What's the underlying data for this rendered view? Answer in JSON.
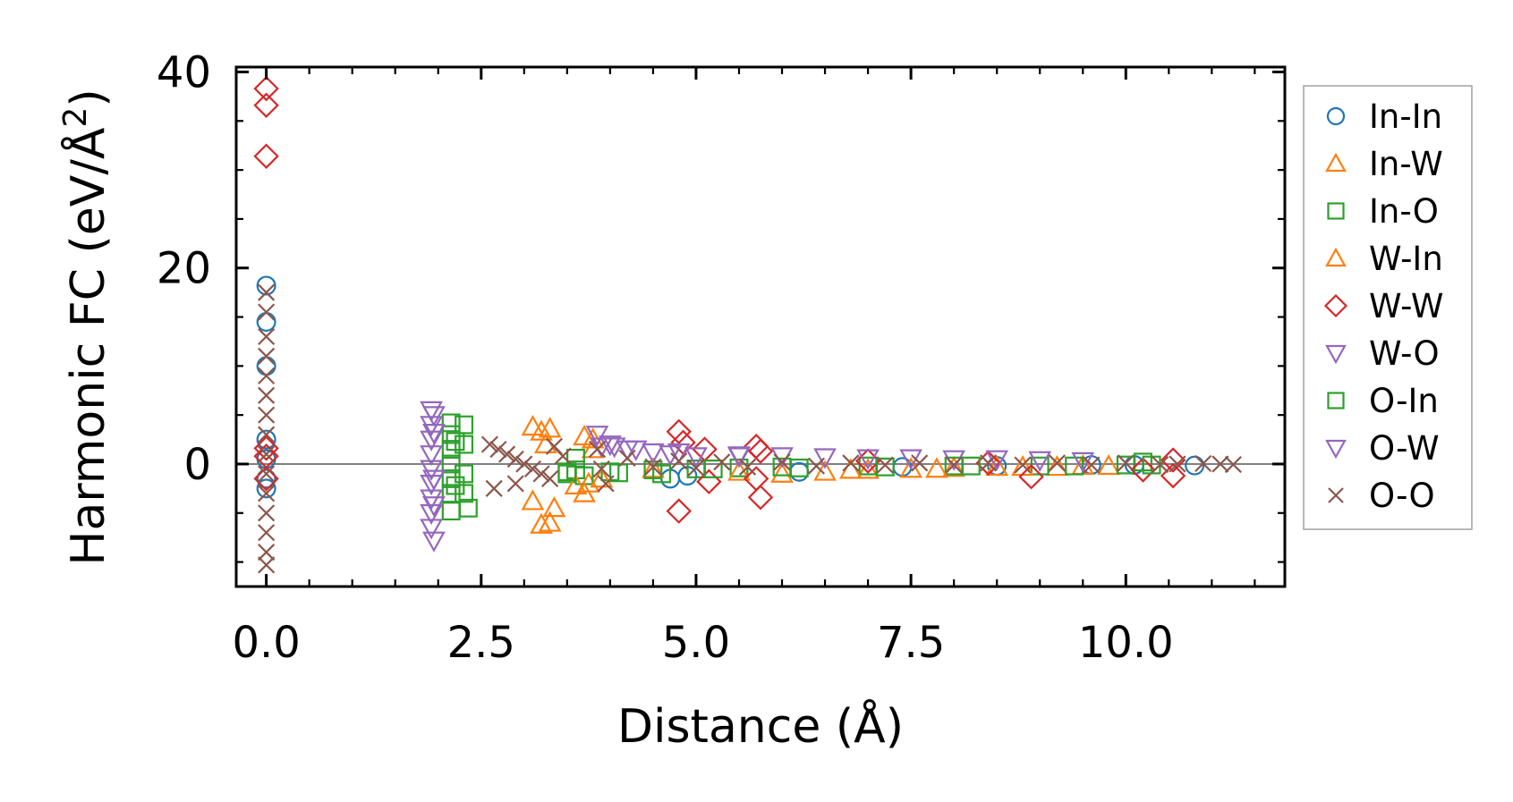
{
  "chart_data": {
    "type": "scatter",
    "xlabel": "Distance (Å)",
    "ylabel_main": "Harmonic FC (eV/Å",
    "ylabel_sup": "2",
    "ylabel_close": ")",
    "xlim": [
      -0.35,
      11.85
    ],
    "ylim": [
      -12.5,
      40.5
    ],
    "x_ticks": [
      0.0,
      2.5,
      5.0,
      7.5,
      10.0
    ],
    "x_tick_labels": [
      "0.0",
      "2.5",
      "5.0",
      "7.5",
      "10.0"
    ],
    "y_ticks": [
      0,
      20,
      40
    ],
    "y_tick_labels": [
      "0",
      "20",
      "40"
    ],
    "zero_line": true,
    "legend_position": "right-outside",
    "series": [
      {
        "name": "In-In",
        "marker": "circle",
        "color": "#1f77b4",
        "points": [
          [
            0,
            18.2
          ],
          [
            0,
            14.5
          ],
          [
            0,
            10.0
          ],
          [
            0,
            2.5
          ],
          [
            0,
            0.5
          ],
          [
            0,
            -1.5
          ],
          [
            0,
            -2.5
          ],
          [
            4.7,
            -1.5
          ],
          [
            4.9,
            -1.2
          ],
          [
            6.2,
            -0.8
          ],
          [
            7.4,
            -0.3
          ],
          [
            8.5,
            -0.2
          ],
          [
            9.6,
            -0.1
          ],
          [
            10.1,
            -0.1
          ],
          [
            10.8,
            -0.15
          ]
        ]
      },
      {
        "name": "In-W",
        "marker": "triangle-up",
        "color": "#ff7f0e",
        "points": [
          [
            3.1,
            3.8
          ],
          [
            3.2,
            3.3
          ],
          [
            3.3,
            3.6
          ],
          [
            3.25,
            2.0
          ],
          [
            3.1,
            -3.8
          ],
          [
            3.2,
            -6.2
          ],
          [
            3.3,
            -6.0
          ],
          [
            3.35,
            -4.5
          ],
          [
            3.7,
            2.8
          ],
          [
            3.75,
            -2.0
          ],
          [
            3.8,
            1.5
          ],
          [
            4.5,
            -0.5
          ],
          [
            6.0,
            -1.0
          ],
          [
            6.5,
            -0.8
          ],
          [
            7.0,
            -0.6
          ],
          [
            7.5,
            -0.5
          ],
          [
            8.0,
            -0.4
          ],
          [
            8.5,
            -0.3
          ],
          [
            9.2,
            -0.3
          ],
          [
            9.8,
            -0.2
          ]
        ]
      },
      {
        "name": "In-O",
        "marker": "square",
        "color": "#2ca02c",
        "points": [
          [
            2.15,
            4.2
          ],
          [
            2.15,
            3.0
          ],
          [
            2.15,
            1.5
          ],
          [
            2.15,
            0.0
          ],
          [
            2.15,
            -1.5
          ],
          [
            2.15,
            -3.0
          ],
          [
            2.15,
            -4.8
          ],
          [
            2.2,
            -2.2
          ],
          [
            2.2,
            2.3
          ],
          [
            3.5,
            -1.0
          ],
          [
            3.6,
            -0.6
          ],
          [
            3.7,
            -1.2
          ],
          [
            4.0,
            -0.8
          ],
          [
            4.5,
            -0.6
          ],
          [
            5.0,
            -0.5
          ],
          [
            5.5,
            -0.4
          ],
          [
            6.0,
            -0.3
          ],
          [
            7.0,
            -0.2
          ],
          [
            8.0,
            -0.2
          ],
          [
            9.0,
            -0.2
          ],
          [
            10.0,
            -0.1
          ],
          [
            10.2,
            0.2
          ]
        ]
      },
      {
        "name": "W-In",
        "marker": "triangle-up",
        "color": "#ff7f0e",
        "points": [
          [
            3.6,
            -2.2
          ],
          [
            3.7,
            -3.0
          ],
          [
            3.8,
            2.5
          ],
          [
            3.9,
            -1.5
          ],
          [
            5.5,
            -0.8
          ],
          [
            6.8,
            -0.6
          ],
          [
            7.8,
            -0.5
          ],
          [
            8.8,
            -0.3
          ],
          [
            9.5,
            -0.2
          ]
        ]
      },
      {
        "name": "W-W",
        "marker": "diamond",
        "color": "#d62728",
        "points": [
          [
            0,
            38.3
          ],
          [
            0,
            36.6
          ],
          [
            0,
            31.4
          ],
          [
            0,
            1.6
          ],
          [
            0,
            0.8
          ],
          [
            0,
            -1.5
          ],
          [
            4.8,
            3.3
          ],
          [
            4.85,
            2.2
          ],
          [
            4.8,
            -4.8
          ],
          [
            5.1,
            1.5
          ],
          [
            5.15,
            -1.8
          ],
          [
            5.7,
            1.8
          ],
          [
            5.75,
            1.3
          ],
          [
            5.7,
            -1.5
          ],
          [
            5.75,
            -3.4
          ],
          [
            7.0,
            0.3
          ],
          [
            8.4,
            0.1
          ],
          [
            8.9,
            -1.3
          ],
          [
            10.2,
            -0.6
          ],
          [
            10.55,
            0.4
          ],
          [
            10.55,
            -1.2
          ]
        ]
      },
      {
        "name": "W-O",
        "marker": "triangle-down",
        "color": "#9467bd",
        "points": [
          [
            1.92,
            5.5
          ],
          [
            1.92,
            4.0
          ],
          [
            1.92,
            2.5
          ],
          [
            1.92,
            1.0
          ],
          [
            1.92,
            -0.5
          ],
          [
            1.92,
            -2.0
          ],
          [
            1.92,
            -3.5
          ],
          [
            1.92,
            -5.0
          ],
          [
            1.92,
            -6.5
          ],
          [
            1.95,
            -7.8
          ],
          [
            3.85,
            3.0
          ],
          [
            3.9,
            1.8
          ],
          [
            4.0,
            2.0
          ],
          [
            4.2,
            1.5
          ],
          [
            4.5,
            1.2
          ],
          [
            4.7,
            1.0
          ],
          [
            5.0,
            0.8
          ],
          [
            5.5,
            0.8
          ],
          [
            6.0,
            0.8
          ],
          [
            7.0,
            0.6
          ],
          [
            8.0,
            0.5
          ],
          [
            9.0,
            0.4
          ]
        ]
      },
      {
        "name": "O-In",
        "marker": "square",
        "color": "#2ca02c",
        "points": [
          [
            2.3,
            4.0
          ],
          [
            2.3,
            2.0
          ],
          [
            2.3,
            -1.0
          ],
          [
            2.3,
            -3.0
          ],
          [
            2.35,
            -4.5
          ],
          [
            3.5,
            -0.8
          ],
          [
            3.6,
            0.6
          ],
          [
            4.1,
            -0.9
          ],
          [
            4.6,
            -1.0
          ],
          [
            5.2,
            -0.5
          ],
          [
            6.2,
            -0.4
          ],
          [
            7.2,
            -0.3
          ],
          [
            8.2,
            -0.2
          ],
          [
            9.4,
            -0.2
          ],
          [
            10.3,
            -0.1
          ]
        ]
      },
      {
        "name": "O-W",
        "marker": "triangle-down",
        "color": "#9467bd",
        "points": [
          [
            1.95,
            5.0
          ],
          [
            1.95,
            3.2
          ],
          [
            1.95,
            -1.5
          ],
          [
            1.95,
            -4.2
          ],
          [
            4.05,
            1.8
          ],
          [
            4.3,
            1.5
          ],
          [
            4.8,
            1.2
          ],
          [
            5.5,
            0.9
          ],
          [
            6.5,
            0.7
          ],
          [
            7.5,
            0.6
          ],
          [
            8.5,
            0.5
          ],
          [
            9.5,
            0.3
          ]
        ]
      },
      {
        "name": "O-O",
        "marker": "x",
        "color": "#8c564b",
        "points": [
          [
            0,
            17.5
          ],
          [
            0,
            15.5
          ],
          [
            0,
            13.0
          ],
          [
            0,
            11.0
          ],
          [
            0,
            9.0
          ],
          [
            0,
            7.0
          ],
          [
            0,
            5.0
          ],
          [
            0,
            3.0
          ],
          [
            0,
            1.0
          ],
          [
            0,
            -1.0
          ],
          [
            0,
            -3.0
          ],
          [
            0,
            -5.0
          ],
          [
            0,
            -7.0
          ],
          [
            0,
            -9.0
          ],
          [
            0,
            -10.3
          ],
          [
            2.6,
            2.0
          ],
          [
            2.7,
            1.5
          ],
          [
            2.8,
            1.0
          ],
          [
            2.9,
            0.5
          ],
          [
            3.0,
            0.0
          ],
          [
            3.1,
            -0.5
          ],
          [
            3.2,
            -1.0
          ],
          [
            3.3,
            -1.5
          ],
          [
            2.65,
            -2.5
          ],
          [
            2.9,
            -2.0
          ],
          [
            3.35,
            1.8
          ],
          [
            3.45,
            0.8
          ],
          [
            3.85,
            1.5
          ],
          [
            3.9,
            -0.5
          ],
          [
            3.95,
            -2.0
          ],
          [
            4.2,
            0.6
          ],
          [
            4.5,
            -0.3
          ],
          [
            4.8,
            0.3
          ],
          [
            5.0,
            -0.4
          ],
          [
            5.3,
            0.2
          ],
          [
            5.6,
            -0.3
          ],
          [
            6.0,
            0.2
          ],
          [
            6.4,
            -0.2
          ],
          [
            6.8,
            0.1
          ],
          [
            7.2,
            -0.1
          ],
          [
            7.6,
            0.1
          ],
          [
            8.0,
            -0.1
          ],
          [
            8.4,
            0.1
          ],
          [
            8.8,
            -0.1
          ],
          [
            9.2,
            0.1
          ],
          [
            9.6,
            -0.1
          ],
          [
            10.0,
            0.1
          ],
          [
            10.4,
            -0.05
          ],
          [
            10.6,
            0.0
          ],
          [
            10.9,
            0.05
          ],
          [
            11.1,
            0.0
          ],
          [
            11.25,
            -0.05
          ]
        ]
      }
    ]
  }
}
